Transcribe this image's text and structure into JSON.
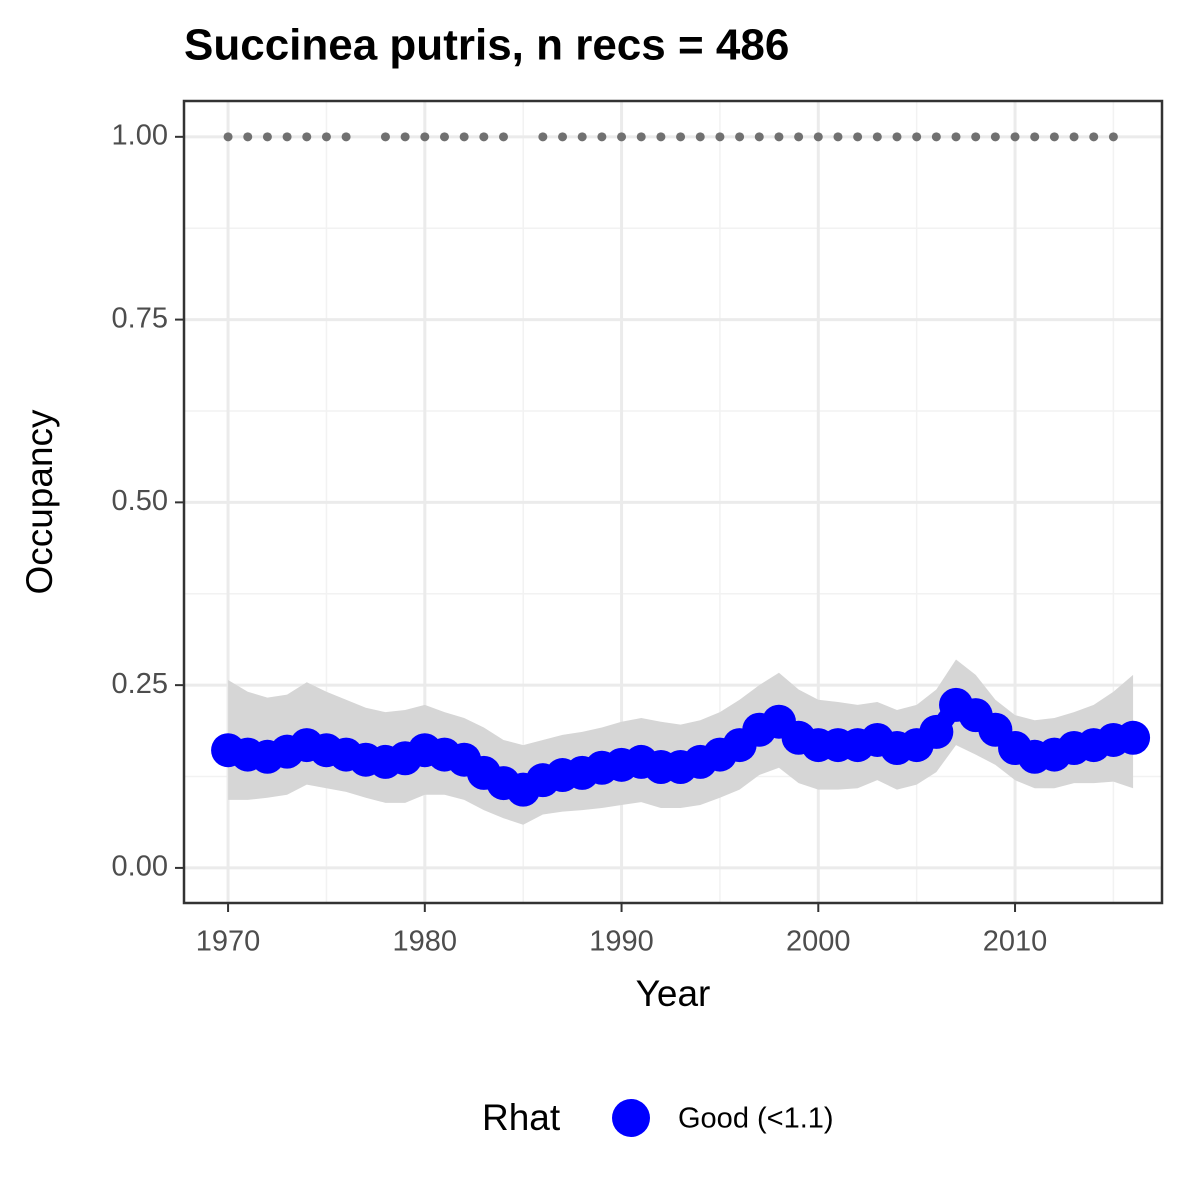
{
  "chart_data": {
    "type": "line",
    "title": "Succinea putris, n recs = 486",
    "x_label": "Year",
    "y_label": "Occupancy",
    "x": [
      1970,
      1971,
      1972,
      1973,
      1974,
      1975,
      1976,
      1977,
      1978,
      1979,
      1980,
      1981,
      1982,
      1983,
      1984,
      1985,
      1986,
      1987,
      1988,
      1989,
      1990,
      1991,
      1992,
      1993,
      1994,
      1995,
      1996,
      1997,
      1998,
      1999,
      2000,
      2001,
      2002,
      2003,
      2004,
      2005,
      2006,
      2007,
      2008,
      2009,
      2010,
      2011,
      2012,
      2013,
      2014,
      2015,
      2016
    ],
    "series": [
      {
        "name": "Good (<1.1)",
        "color": "#0000ff",
        "band_color": "#d6d6d6",
        "values": [
          0.161,
          0.155,
          0.152,
          0.159,
          0.168,
          0.161,
          0.155,
          0.148,
          0.145,
          0.15,
          0.161,
          0.155,
          0.148,
          0.13,
          0.116,
          0.107,
          0.12,
          0.127,
          0.13,
          0.137,
          0.141,
          0.145,
          0.138,
          0.138,
          0.145,
          0.155,
          0.168,
          0.189,
          0.2,
          0.178,
          0.168,
          0.168,
          0.168,
          0.175,
          0.164,
          0.168,
          0.186,
          0.223,
          0.209,
          0.189,
          0.164,
          0.152,
          0.155,
          0.164,
          0.168,
          0.175,
          0.178
        ],
        "upper": [
          0.257,
          0.241,
          0.233,
          0.237,
          0.254,
          0.241,
          0.23,
          0.219,
          0.213,
          0.216,
          0.223,
          0.213,
          0.205,
          0.192,
          0.175,
          0.168,
          0.175,
          0.182,
          0.186,
          0.192,
          0.2,
          0.205,
          0.2,
          0.196,
          0.202,
          0.213,
          0.23,
          0.25,
          0.267,
          0.244,
          0.23,
          0.227,
          0.223,
          0.227,
          0.216,
          0.223,
          0.244,
          0.285,
          0.264,
          0.23,
          0.209,
          0.202,
          0.205,
          0.213,
          0.223,
          0.241,
          0.264
        ],
        "lower": [
          0.093,
          0.093,
          0.096,
          0.1,
          0.114,
          0.109,
          0.104,
          0.096,
          0.089,
          0.089,
          0.1,
          0.1,
          0.093,
          0.079,
          0.068,
          0.059,
          0.073,
          0.077,
          0.079,
          0.082,
          0.086,
          0.09,
          0.082,
          0.082,
          0.086,
          0.096,
          0.107,
          0.127,
          0.137,
          0.116,
          0.107,
          0.107,
          0.109,
          0.12,
          0.107,
          0.114,
          0.131,
          0.168,
          0.155,
          0.141,
          0.12,
          0.109,
          0.109,
          0.116,
          0.116,
          0.118,
          0.109
        ]
      }
    ],
    "record_markers": {
      "color": "#707070",
      "x": [
        1970,
        1971,
        1972,
        1973,
        1974,
        1975,
        1976,
        1978,
        1979,
        1980,
        1981,
        1982,
        1983,
        1984,
        1986,
        1987,
        1988,
        1989,
        1990,
        1991,
        1992,
        1993,
        1994,
        1995,
        1996,
        1997,
        1998,
        1999,
        2000,
        2001,
        2002,
        2003,
        2004,
        2005,
        2006,
        2007,
        2008,
        2009,
        2010,
        2011,
        2012,
        2013,
        2014,
        2015
      ],
      "values": [
        1,
        1,
        1,
        1,
        1,
        1,
        1,
        1,
        1,
        1,
        1,
        1,
        1,
        1,
        1,
        1,
        1,
        1,
        1,
        1,
        1,
        1,
        1,
        1,
        1,
        1,
        1,
        1,
        1,
        1,
        1,
        1,
        1,
        1,
        1,
        1,
        1,
        1,
        1,
        1,
        1,
        1,
        1,
        1
      ]
    },
    "xlim": [
      1967.76,
      2017.47
    ],
    "ylim": [
      -0.048,
      1.049
    ],
    "xticks": [
      1970,
      1980,
      1990,
      2000,
      2010
    ],
    "yticks": [
      {
        "value": 0,
        "label": "0.00"
      },
      {
        "value": 0.25,
        "label": "0.25"
      },
      {
        "value": 0.5,
        "label": "0.50"
      },
      {
        "value": 0.75,
        "label": "0.75"
      },
      {
        "value": 1,
        "label": "1.00"
      }
    ],
    "xminor": [
      1975,
      1985,
      1995,
      2005,
      2015
    ],
    "yminor": [
      0.125,
      0.375,
      0.625,
      0.875
    ],
    "grid": true,
    "legend_title": "Rhat",
    "legend_position": "bottom"
  }
}
